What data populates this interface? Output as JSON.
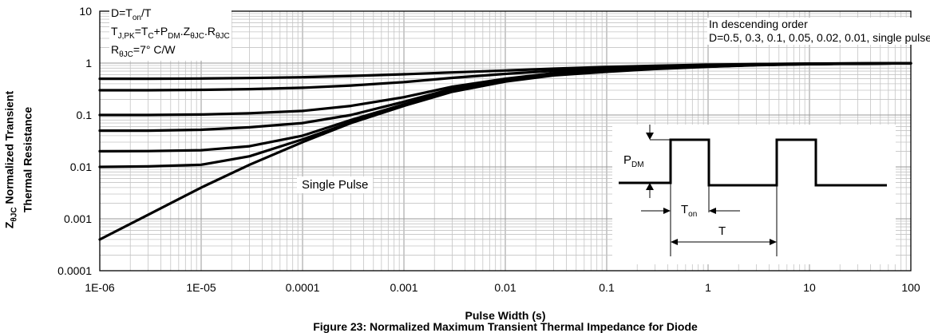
{
  "chart_data": {
    "type": "line",
    "title": "",
    "caption": "Figure 23: Normalized Maximum Transient Thermal Impedance for Diode",
    "xlabel": "Pulse Width (s)",
    "ylabel": "Normalized Transient Thermal Resistance",
    "ylabel_symbol": "Z",
    "ylabel_symbol_sub": "θJC",
    "xscale": "log",
    "yscale": "log",
    "xlim": [
      1e-06,
      100
    ],
    "ylim": [
      0.0001,
      10
    ],
    "grid": true,
    "x_tick_labels": [
      "1E-06",
      "1E-05",
      "0.0001",
      "0.001",
      "0.01",
      "0.1",
      "1",
      "10",
      "100"
    ],
    "y_tick_labels": [
      "0.0001",
      "0.001",
      "0.01",
      "0.1",
      "1",
      "10"
    ],
    "x": [
      1e-06,
      3e-06,
      1e-05,
      3e-05,
      0.0001,
      0.0003,
      0.001,
      0.003,
      0.01,
      0.03,
      0.1,
      0.3,
      1,
      3,
      10,
      30,
      100
    ],
    "series": [
      {
        "name": "D=0.5",
        "values": [
          0.5,
          0.5,
          0.505,
          0.515,
          0.535,
          0.565,
          0.61,
          0.66,
          0.72,
          0.78,
          0.84,
          0.89,
          0.93,
          0.96,
          0.98,
          0.99,
          0.995
        ]
      },
      {
        "name": "D=0.3",
        "values": [
          0.3,
          0.3,
          0.305,
          0.315,
          0.335,
          0.37,
          0.43,
          0.52,
          0.62,
          0.71,
          0.78,
          0.85,
          0.91,
          0.95,
          0.97,
          0.985,
          0.99
        ]
      },
      {
        "name": "D=0.1",
        "values": [
          0.1,
          0.1,
          0.102,
          0.108,
          0.12,
          0.15,
          0.22,
          0.35,
          0.5,
          0.64,
          0.73,
          0.8,
          0.87,
          0.93,
          0.96,
          0.98,
          0.99
        ]
      },
      {
        "name": "D=0.05",
        "values": [
          0.05,
          0.05,
          0.052,
          0.058,
          0.07,
          0.1,
          0.18,
          0.32,
          0.48,
          0.62,
          0.71,
          0.79,
          0.86,
          0.92,
          0.96,
          0.98,
          0.99
        ]
      },
      {
        "name": "D=0.02",
        "values": [
          0.02,
          0.0202,
          0.021,
          0.025,
          0.04,
          0.08,
          0.16,
          0.3,
          0.46,
          0.6,
          0.7,
          0.78,
          0.86,
          0.92,
          0.96,
          0.98,
          0.99
        ]
      },
      {
        "name": "D=0.01",
        "values": [
          0.01,
          0.0102,
          0.011,
          0.016,
          0.034,
          0.072,
          0.155,
          0.29,
          0.45,
          0.59,
          0.69,
          0.78,
          0.86,
          0.92,
          0.96,
          0.98,
          0.99
        ]
      },
      {
        "name": "single pulse",
        "values": [
          0.0004,
          0.0012,
          0.004,
          0.011,
          0.03,
          0.07,
          0.15,
          0.28,
          0.44,
          0.58,
          0.68,
          0.77,
          0.85,
          0.91,
          0.95,
          0.975,
          0.99
        ]
      }
    ],
    "annotations": {
      "left_box": [
        "D=T",
        "on",
        "/T",
        "T",
        "J,PK",
        "=T",
        "C",
        "+P",
        "DM",
        ".Z",
        "θJC",
        ".R",
        "θJC",
        "R",
        "θJC",
        "=7° C/W"
      ],
      "right_box": [
        "In descending order",
        "D=0.5, 0.3, 0.1, 0.05, 0.02, 0.01, single pulse"
      ],
      "single_pulse_label": "Single Pulse",
      "inset": {
        "pdm": "P",
        "pdm_sub": "DM",
        "ton": "T",
        "ton_sub": "on",
        "period": "T"
      }
    }
  }
}
